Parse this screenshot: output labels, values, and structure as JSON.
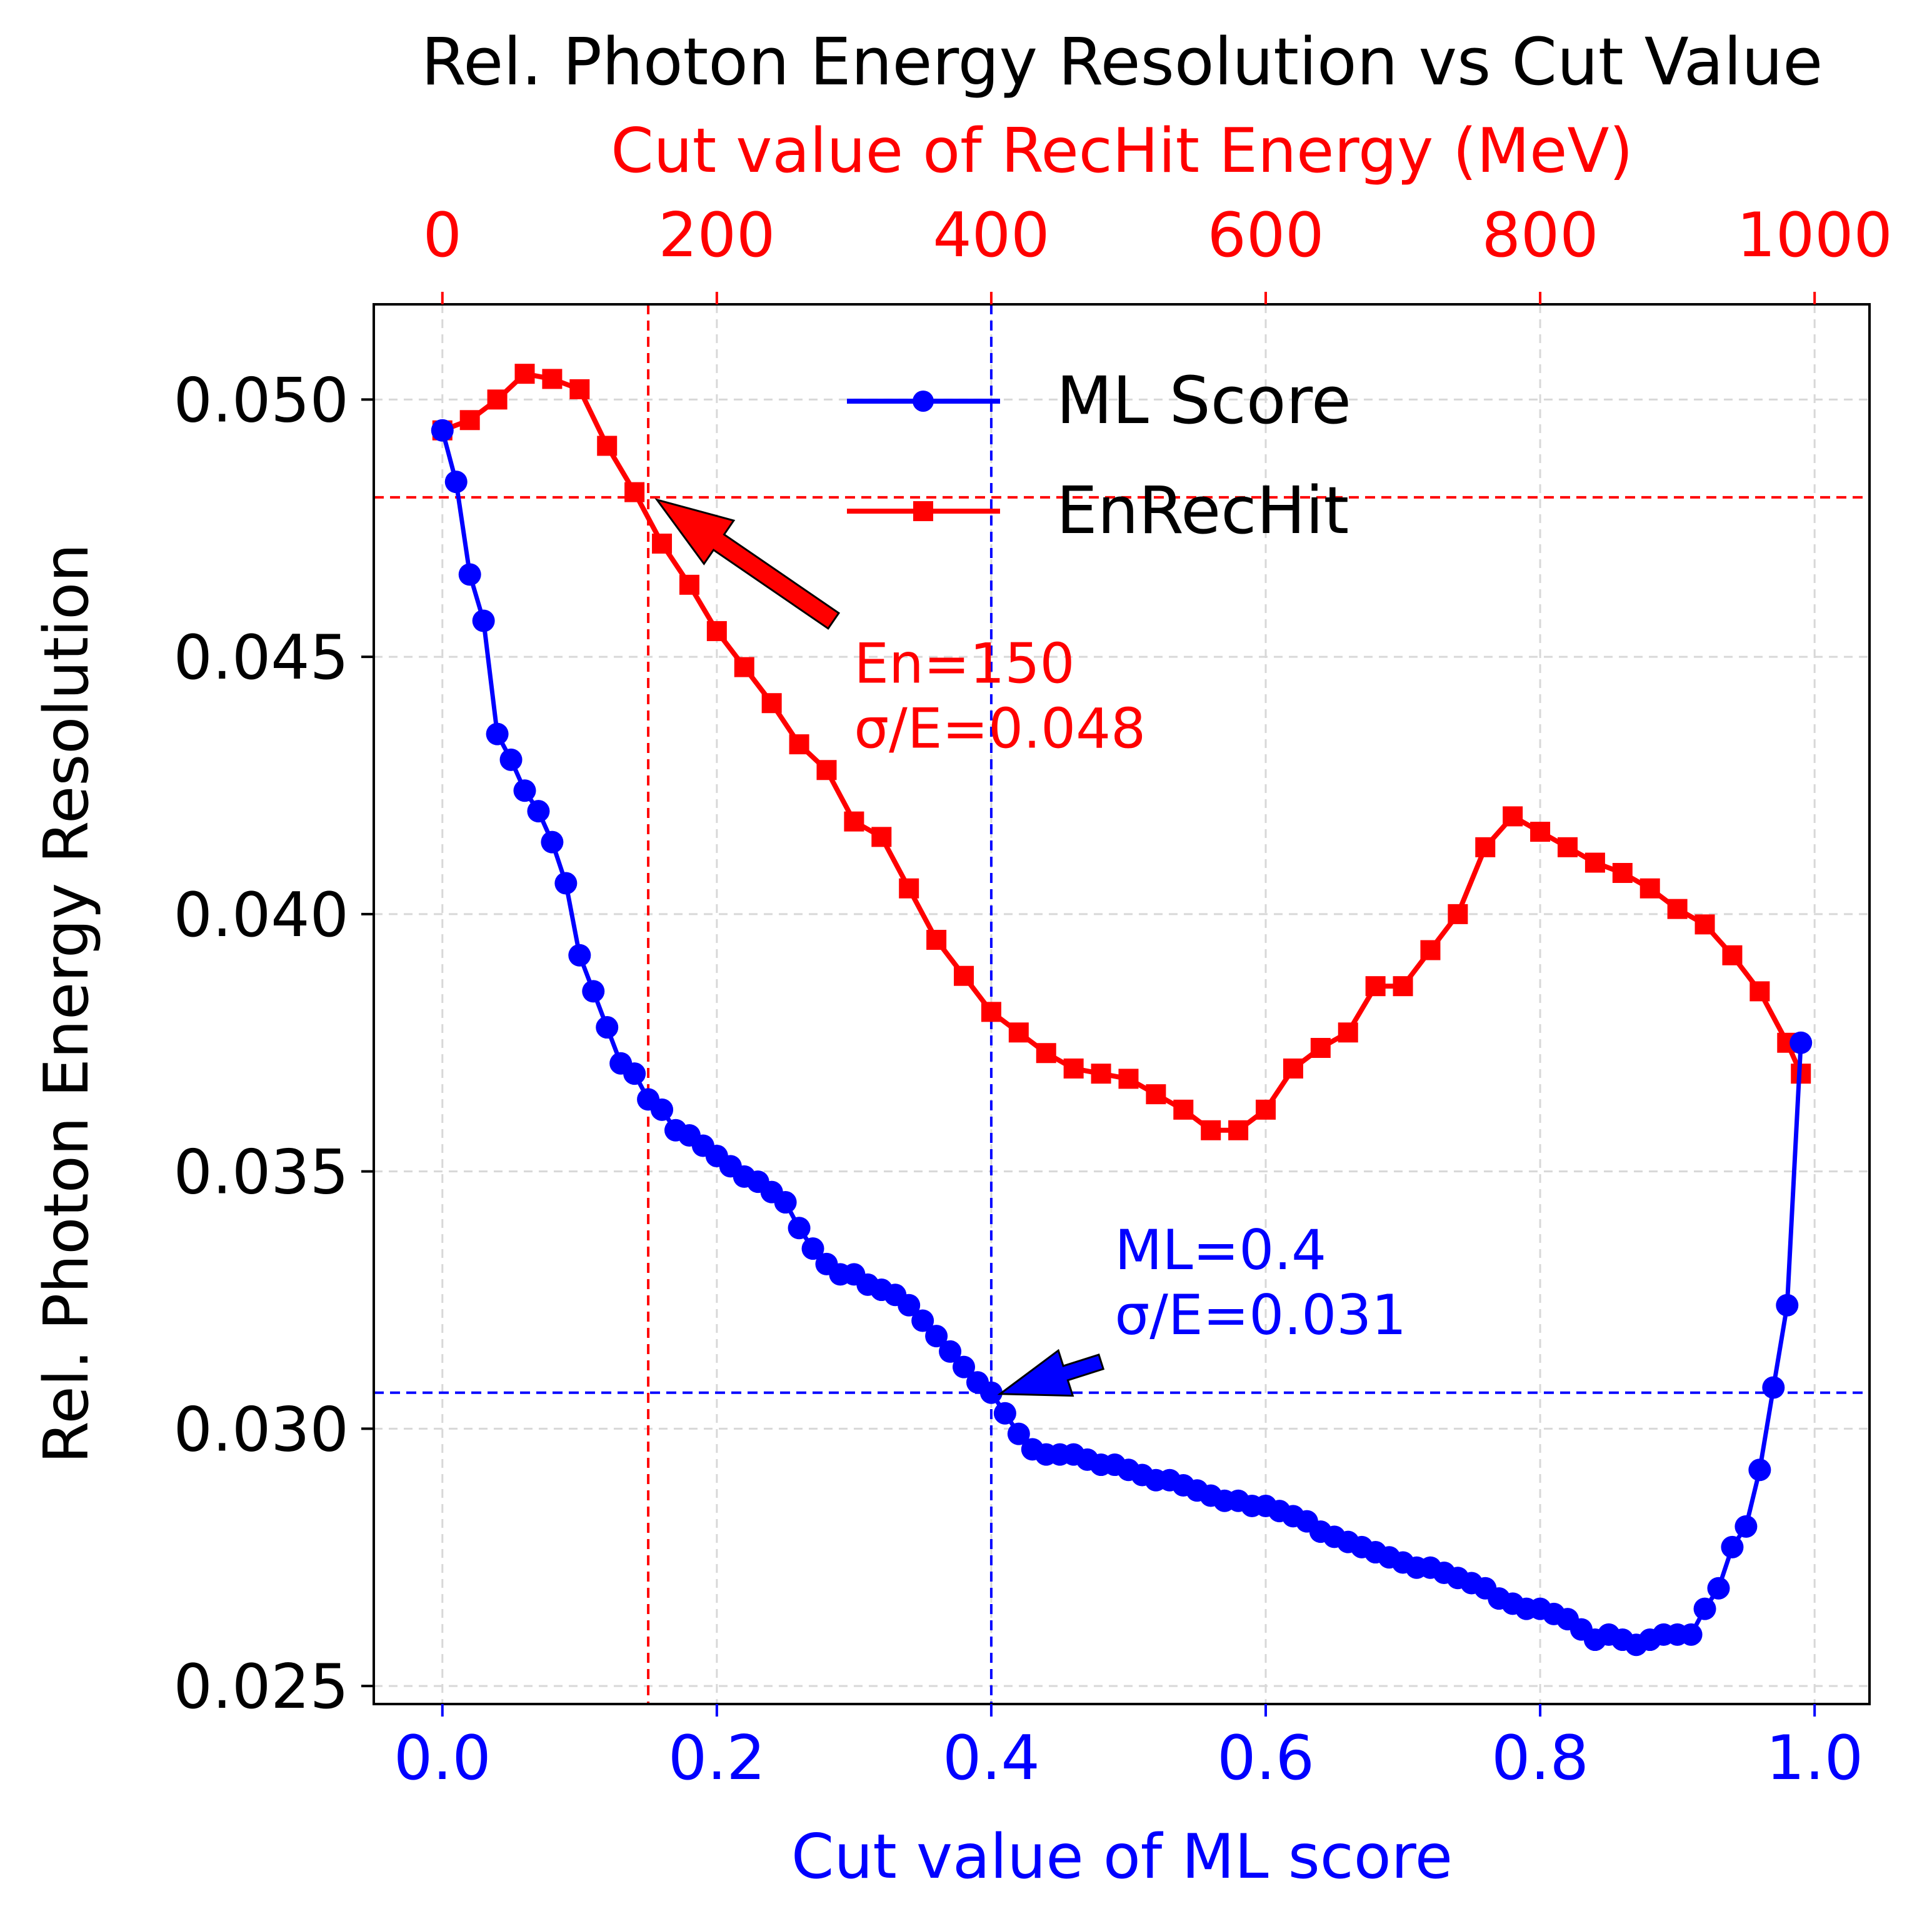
{
  "chart_data": {
    "type": "line",
    "title": "Rel. Photon Energy Resolution vs Cut Value",
    "ylabel": "Rel. Photon Energy Resolution",
    "xlabel": "Cut value of ML score",
    "x2label": "Cut value of RecHit Energy (MeV)",
    "xlim": [
      -0.05,
      1.04
    ],
    "x2lim": [
      -50,
      1040
    ],
    "ylim": [
      0.02465,
      0.05185
    ],
    "y_ticks": [
      0.025,
      0.03,
      0.035,
      0.04,
      0.045,
      0.05
    ],
    "y_tick_labels": [
      "0.025",
      "0.030",
      "0.035",
      "0.040",
      "0.045",
      "0.050"
    ],
    "x_ticks": [
      0.0,
      0.2,
      0.4,
      0.6,
      0.8,
      1.0
    ],
    "x_tick_labels": [
      "0.0",
      "0.2",
      "0.4",
      "0.6",
      "0.8",
      "1.0"
    ],
    "x2_ticks": [
      0,
      200,
      400,
      600,
      800,
      1000
    ],
    "x2_tick_labels": [
      "0",
      "200",
      "400",
      "600",
      "800",
      "1000"
    ],
    "grid": true,
    "legend_position": "upper-center",
    "colors": {
      "ml": "#0000ff",
      "en": "#ff0000",
      "grid": "#d8d8d8",
      "axis": "#000000"
    },
    "series": [
      {
        "name": "ML Score",
        "axis": "bottom",
        "marker": "circle",
        "color": "#0000ff",
        "x": [
          0.0,
          0.01,
          0.02,
          0.03,
          0.04,
          0.05,
          0.06,
          0.07,
          0.08,
          0.09,
          0.1,
          0.11,
          0.12,
          0.13,
          0.14,
          0.15,
          0.16,
          0.17,
          0.18,
          0.19,
          0.2,
          0.21,
          0.22,
          0.23,
          0.24,
          0.25,
          0.26,
          0.27,
          0.28,
          0.29,
          0.3,
          0.31,
          0.32,
          0.33,
          0.34,
          0.35,
          0.36,
          0.37,
          0.38,
          0.39,
          0.4,
          0.41,
          0.42,
          0.43,
          0.44,
          0.45,
          0.46,
          0.47,
          0.48,
          0.49,
          0.5,
          0.51,
          0.52,
          0.53,
          0.54,
          0.55,
          0.56,
          0.57,
          0.58,
          0.59,
          0.6,
          0.61,
          0.62,
          0.63,
          0.64,
          0.65,
          0.66,
          0.67,
          0.68,
          0.69,
          0.7,
          0.71,
          0.72,
          0.73,
          0.74,
          0.75,
          0.76,
          0.77,
          0.78,
          0.79,
          0.8,
          0.81,
          0.82,
          0.83,
          0.84,
          0.85,
          0.86,
          0.87,
          0.88,
          0.89,
          0.9,
          0.91,
          0.92,
          0.93,
          0.94,
          0.95,
          0.96,
          0.97,
          0.98,
          0.99
        ],
        "values": [
          0.0494,
          0.0484,
          0.0466,
          0.0457,
          0.0435,
          0.043,
          0.0424,
          0.042,
          0.0414,
          0.0406,
          0.0392,
          0.0385,
          0.0378,
          0.0371,
          0.0369,
          0.0364,
          0.0362,
          0.0358,
          0.0357,
          0.0355,
          0.0353,
          0.0351,
          0.0349,
          0.0348,
          0.0346,
          0.0344,
          0.0339,
          0.0335,
          0.0332,
          0.033,
          0.033,
          0.0328,
          0.0327,
          0.0326,
          0.0324,
          0.0321,
          0.0318,
          0.0315,
          0.0312,
          0.0309,
          0.0307,
          0.0303,
          0.0299,
          0.0296,
          0.0295,
          0.0295,
          0.0295,
          0.0294,
          0.0293,
          0.0293,
          0.0292,
          0.0291,
          0.029,
          0.029,
          0.0289,
          0.0288,
          0.0287,
          0.0286,
          0.0286,
          0.0285,
          0.0285,
          0.0284,
          0.0283,
          0.0282,
          0.028,
          0.0279,
          0.0278,
          0.0277,
          0.0276,
          0.0275,
          0.0274,
          0.0273,
          0.0273,
          0.0272,
          0.0271,
          0.027,
          0.0269,
          0.0267,
          0.0266,
          0.0265,
          0.0265,
          0.0264,
          0.0263,
          0.0261,
          0.0259,
          0.026,
          0.0259,
          0.0258,
          0.0259,
          0.026,
          0.026,
          0.026,
          0.0265,
          0.0269,
          0.0277,
          0.0281,
          0.0292,
          0.0308,
          0.0324,
          0.0375
        ]
      },
      {
        "name": "EnRecHit",
        "axis": "top",
        "marker": "square",
        "color": "#ff0000",
        "x": [
          0,
          20,
          40,
          60,
          80,
          100,
          120,
          140,
          160,
          180,
          200,
          220,
          240,
          260,
          280,
          300,
          320,
          340,
          360,
          380,
          400,
          420,
          440,
          460,
          480,
          500,
          520,
          540,
          560,
          580,
          600,
          620,
          640,
          660,
          680,
          700,
          720,
          740,
          760,
          780,
          800,
          820,
          840,
          860,
          880,
          900,
          920,
          940,
          960,
          980,
          990
        ],
        "values": [
          0.0494,
          0.0496,
          0.05,
          0.0505,
          0.0504,
          0.0502,
          0.0491,
          0.0482,
          0.0472,
          0.0464,
          0.0455,
          0.0448,
          0.0441,
          0.0433,
          0.0428,
          0.0418,
          0.0415,
          0.0405,
          0.0395,
          0.0388,
          0.0381,
          0.0377,
          0.0373,
          0.037,
          0.0369,
          0.0368,
          0.0365,
          0.0362,
          0.0358,
          0.0358,
          0.0362,
          0.037,
          0.0374,
          0.0377,
          0.0386,
          0.0386,
          0.0393,
          0.04,
          0.0413,
          0.0419,
          0.0416,
          0.0413,
          0.041,
          0.0408,
          0.0405,
          0.0401,
          0.0398,
          0.0392,
          0.0385,
          0.0375,
          0.0369
        ]
      }
    ],
    "reference_lines": {
      "en_cut_x2": 150,
      "en_cut_y": 0.0481,
      "ml_cut_x": 0.4,
      "ml_cut_y": 0.0307
    },
    "annotations": [
      {
        "lines": [
          "En=150",
          "σ/E=0.048"
        ],
        "color": "#ff0000",
        "point_x2": 150,
        "point_y": 0.0481,
        "text_x": 0.3,
        "text_y": 0.0445
      },
      {
        "lines": [
          "ML=0.4",
          "σ/E=0.031"
        ],
        "color": "#0000ff",
        "point_x": 0.4,
        "point_y": 0.0307,
        "text_x": 0.49,
        "text_y": 0.0331
      }
    ]
  }
}
